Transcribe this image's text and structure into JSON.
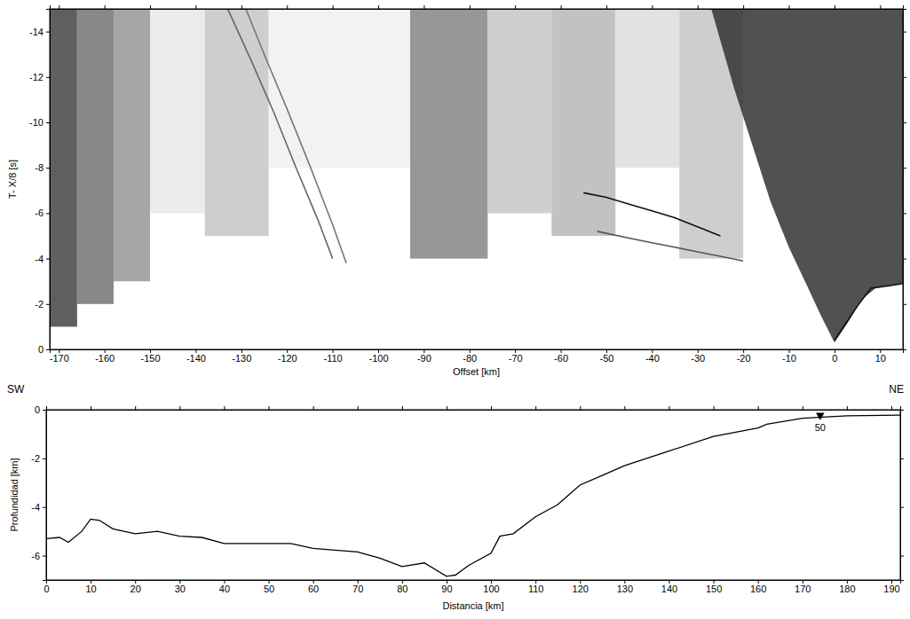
{
  "chart_data": [
    {
      "type": "record_section",
      "x_label": "Offset [km]",
      "y_label": "T- X/8 [s]",
      "xlim": [
        -172,
        15
      ],
      "xticks": [
        -170,
        -160,
        -150,
        -140,
        -130,
        -120,
        -110,
        -100,
        -90,
        -80,
        -70,
        -60,
        -50,
        -40,
        -30,
        -20,
        -10,
        0,
        10
      ],
      "ylim": [
        0,
        -15
      ],
      "yticks": [
        0,
        -2,
        -4,
        -6,
        -8,
        -10,
        -12,
        -14
      ],
      "cells": [
        {
          "x": [
            -172,
            -166
          ],
          "t": [
            -1,
            -15
          ],
          "value": 0.7
        },
        {
          "x": [
            -166,
            -158
          ],
          "t": [
            -2,
            -15
          ],
          "value": 0.55
        },
        {
          "x": [
            -158,
            -150
          ],
          "t": [
            -3,
            -15
          ],
          "value": 0.45
        },
        {
          "x": [
            -150,
            -138
          ],
          "t": [
            -6,
            -15
          ],
          "value": 0.15
        },
        {
          "x": [
            -138,
            -124
          ],
          "t": [
            -5,
            -15
          ],
          "value": 0.3
        },
        {
          "x": [
            -124,
            -93
          ],
          "t": [
            -8,
            -15
          ],
          "value": 0.1
        },
        {
          "x": [
            -93,
            -76
          ],
          "t": [
            -4,
            -15
          ],
          "value": 0.5
        },
        {
          "x": [
            -76,
            -62
          ],
          "t": [
            -6,
            -15
          ],
          "value": 0.3
        },
        {
          "x": [
            -62,
            -48
          ],
          "t": [
            -5,
            -15
          ],
          "value": 0.35
        },
        {
          "x": [
            -48,
            -34
          ],
          "t": [
            -8,
            -15
          ],
          "value": 0.2
        },
        {
          "x": [
            -34,
            -20
          ],
          "t": [
            -4,
            -15
          ],
          "value": 0.3
        }
      ],
      "series": [
        {
          "type": "area",
          "color": "#333333",
          "x": [
            -27,
            -22,
            -18,
            -14,
            -10,
            -6,
            -3,
            0,
            3,
            6,
            9,
            12,
            15
          ],
          "values": [
            -15,
            -11.5,
            -9,
            -6.5,
            -4.5,
            -2.8,
            -1.5,
            -0.3,
            -1.2,
            -2.2,
            -2.7,
            -2.8,
            -2.9
          ]
        },
        {
          "type": "line",
          "color": "#111111",
          "x": [
            -55,
            -50,
            -45,
            -40,
            -35,
            -30,
            -25
          ],
          "values": [
            -6.9,
            -6.7,
            -6.4,
            -6.1,
            -5.8,
            -5.4,
            -5.0
          ]
        },
        {
          "type": "line",
          "color": "#555555",
          "x": [
            -52,
            -45,
            -40,
            -35,
            -30,
            -25,
            -20
          ],
          "values": [
            -5.2,
            -4.9,
            -4.7,
            -4.5,
            -4.3,
            -4.1,
            -3.9
          ]
        },
        {
          "type": "line",
          "color": "#666666",
          "x": [
            -133,
            -128,
            -123,
            -118,
            -113,
            -110
          ],
          "values": [
            -15,
            -12.8,
            -10.5,
            -8.0,
            -5.6,
            -4.0
          ]
        },
        {
          "type": "line",
          "color": "#777777",
          "x": [
            -129,
            -125,
            -120,
            -115,
            -110,
            -107
          ],
          "values": [
            -15,
            -13,
            -10.6,
            -8.1,
            -5.5,
            -3.8
          ]
        },
        {
          "type": "line",
          "color": "#111111",
          "x": [
            0,
            5,
            8,
            12,
            15
          ],
          "values": [
            -0.4,
            -1.9,
            -2.7,
            -2.8,
            -2.9
          ]
        }
      ]
    },
    {
      "type": "line",
      "x_label": "Distancia [km]",
      "y_label": "Profundidad [km]",
      "annotations": [
        "SW",
        "NE"
      ],
      "xlim": [
        0,
        192
      ],
      "xticks": [
        0,
        10,
        20,
        30,
        40,
        50,
        60,
        70,
        80,
        90,
        100,
        110,
        120,
        130,
        140,
        150,
        160,
        170,
        180,
        190
      ],
      "ylim": [
        -7,
        0
      ],
      "yticks": [
        -6,
        -4,
        -2,
        0
      ],
      "series": [
        {
          "type": "line",
          "color": "#000000",
          "x": [
            0,
            3,
            5,
            8,
            10,
            12,
            15,
            20,
            25,
            30,
            35,
            40,
            50,
            55,
            60,
            70,
            75,
            80,
            85,
            90,
            92,
            95,
            100,
            102,
            105,
            110,
            115,
            120,
            125,
            130,
            140,
            150,
            160,
            162,
            170,
            180,
            192
          ],
          "values": [
            -5.3,
            -5.25,
            -5.45,
            -5.0,
            -4.5,
            -4.55,
            -4.9,
            -5.1,
            -5.0,
            -5.2,
            -5.25,
            -5.5,
            -5.5,
            -5.5,
            -5.7,
            -5.85,
            -6.1,
            -6.45,
            -6.3,
            -6.85,
            -6.8,
            -6.4,
            -5.9,
            -5.2,
            -5.1,
            -4.4,
            -3.9,
            -3.1,
            -2.7,
            -2.3,
            -1.7,
            -1.1,
            -0.75,
            -0.6,
            -0.35,
            -0.25,
            -0.22
          ]
        }
      ],
      "stations": [
        {
          "x": 174,
          "value": -0.3,
          "label": "50"
        }
      ]
    }
  ]
}
